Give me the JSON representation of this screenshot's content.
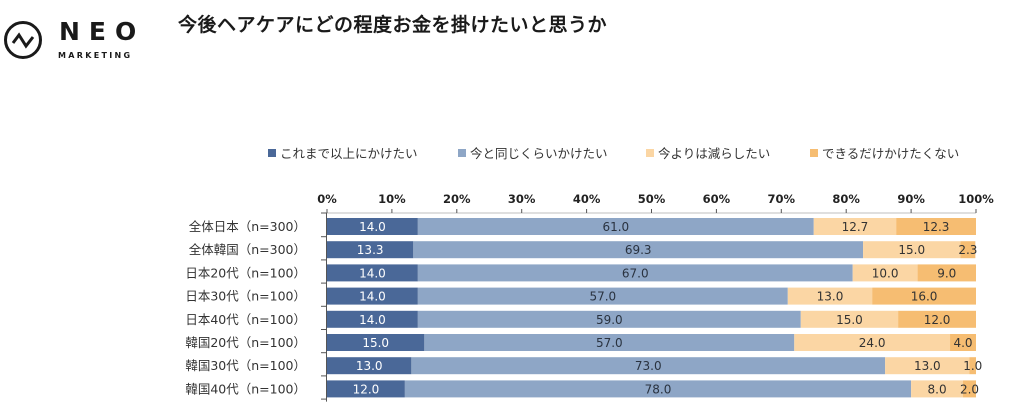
{
  "logo": {
    "name": "NEO",
    "subtitle": "MARKETING"
  },
  "chart_data": {
    "type": "bar",
    "orientation": "horizontal",
    "stacked": "percent",
    "title": "今後ヘアケアにどの程度お金を掛けたいと思うか",
    "xlim": [
      0,
      100
    ],
    "x_ticks": [
      "0%",
      "10%",
      "20%",
      "30%",
      "40%",
      "50%",
      "60%",
      "70%",
      "80%",
      "90%",
      "100%"
    ],
    "legend_position": "top",
    "categories": [
      "全体日本（n=300）",
      "全体韓国（n=300）",
      "日本20代（n=100）",
      "日本30代（n=100）",
      "日本40代（n=100）",
      "韓国20代（n=100）",
      "韓国30代（n=100）",
      "韓国40代（n=100）"
    ],
    "series": [
      {
        "name": "これまで以上にかけたい",
        "color": "#4a6898",
        "label_color": "#ffffff",
        "values": [
          14.0,
          13.3,
          14.0,
          14.0,
          14.0,
          15.0,
          13.0,
          12.0
        ],
        "labels": [
          "14.0",
          "13.3",
          "14.0",
          "14.0",
          "14.0",
          "15.0",
          "13.0",
          "12.0"
        ]
      },
      {
        "name": "今と同じくらいかけたい",
        "color": "#8ea6c6",
        "label_color": "#2a3340",
        "values": [
          61.0,
          69.3,
          67.0,
          57.0,
          59.0,
          57.0,
          73.0,
          78.0
        ],
        "labels": [
          "61.0",
          "69.3",
          "67.0",
          "57.0",
          "59.0",
          "57.0",
          "73.0",
          "78.0"
        ]
      },
      {
        "name": "今よりは減らしたい",
        "color": "#fbd6a4",
        "label_color": "#333333",
        "values": [
          12.7,
          15.0,
          10.0,
          13.0,
          15.0,
          24.0,
          13.0,
          8.0
        ],
        "labels": [
          "12.7",
          "15.0",
          "10.0",
          "13.0",
          "15.0",
          "24.0",
          "13.0",
          "8.0"
        ]
      },
      {
        "name": "できるだけかけたくない",
        "color": "#f6bd72",
        "label_color": "#333333",
        "values": [
          12.3,
          2.3,
          9.0,
          16.0,
          12.0,
          4.0,
          1.0,
          2.0
        ],
        "labels": [
          "12.3",
          "2.3",
          "9.0",
          "16.0",
          "12.0",
          "4.0",
          "1.0",
          "2.0"
        ]
      }
    ]
  }
}
